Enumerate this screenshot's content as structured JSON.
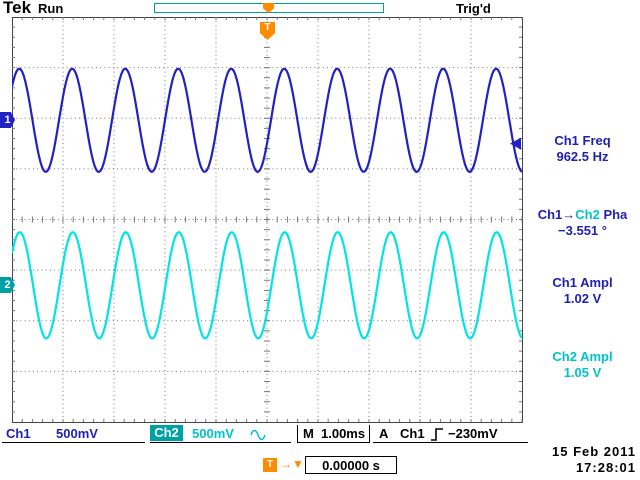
{
  "header": {
    "logo": "Tek",
    "acq_state": "Run",
    "trigger_status": "Trig'd"
  },
  "channels": {
    "ch1": {
      "badge": "1"
    },
    "ch2": {
      "badge": "2"
    }
  },
  "measurements": {
    "freq": {
      "label": "Ch1 Freq",
      "value": "962.5 Hz"
    },
    "phase": {
      "label_pre": "Ch1→",
      "label_ch2": "Ch2",
      "label_post": " Pha",
      "value": "−3.551 °"
    },
    "ch1ampl": {
      "label": "Ch1 Ampl",
      "value": "1.02 V"
    },
    "ch2ampl": {
      "label": "Ch2 Ampl",
      "value": "1.05 V"
    }
  },
  "statusbar": {
    "ch1_label": "Ch1",
    "ch1_scale": "500mV",
    "ch2_label": "Ch2",
    "ch2_scale": "500mV",
    "timebase_label": "M",
    "timebase": "1.00ms",
    "trig_a_label": "A",
    "trig_source": "Ch1",
    "trig_level": "−230mV"
  },
  "footer": {
    "t_arrow": "→▼",
    "t_pos": "0.00000 s",
    "date": "15 Feb  2011",
    "time": "17:28:01"
  },
  "trigger": {
    "marker_label": "T",
    "level_v": -0.23,
    "source": "Ch1"
  },
  "timebase_ms_per_div": 1.0,
  "waveforms": {
    "ch1": {
      "name": "CH1",
      "volts_per_div": 0.5,
      "amplitude_v": 1.02,
      "freq_hz": 962.5,
      "center_div_from_top": 2.04,
      "phase_deg": 0,
      "color_key": "ch1"
    },
    "ch2": {
      "name": "CH2",
      "volts_per_div": 0.5,
      "amplitude_v": 1.05,
      "freq_hz": 962.5,
      "center_div_from_top": 5.3,
      "phase_deg": -3.551,
      "color_key": "ch2"
    }
  },
  "colors": {
    "ch1": "#2222c2",
    "ch1_text": "#1f1fb0",
    "ch2": "#00e4e4",
    "ch2_text": "#00c2cc",
    "ch2_badge": "#00a1a6",
    "orange": "#ff8c00",
    "grid": "#777777",
    "frame": "#444444"
  }
}
